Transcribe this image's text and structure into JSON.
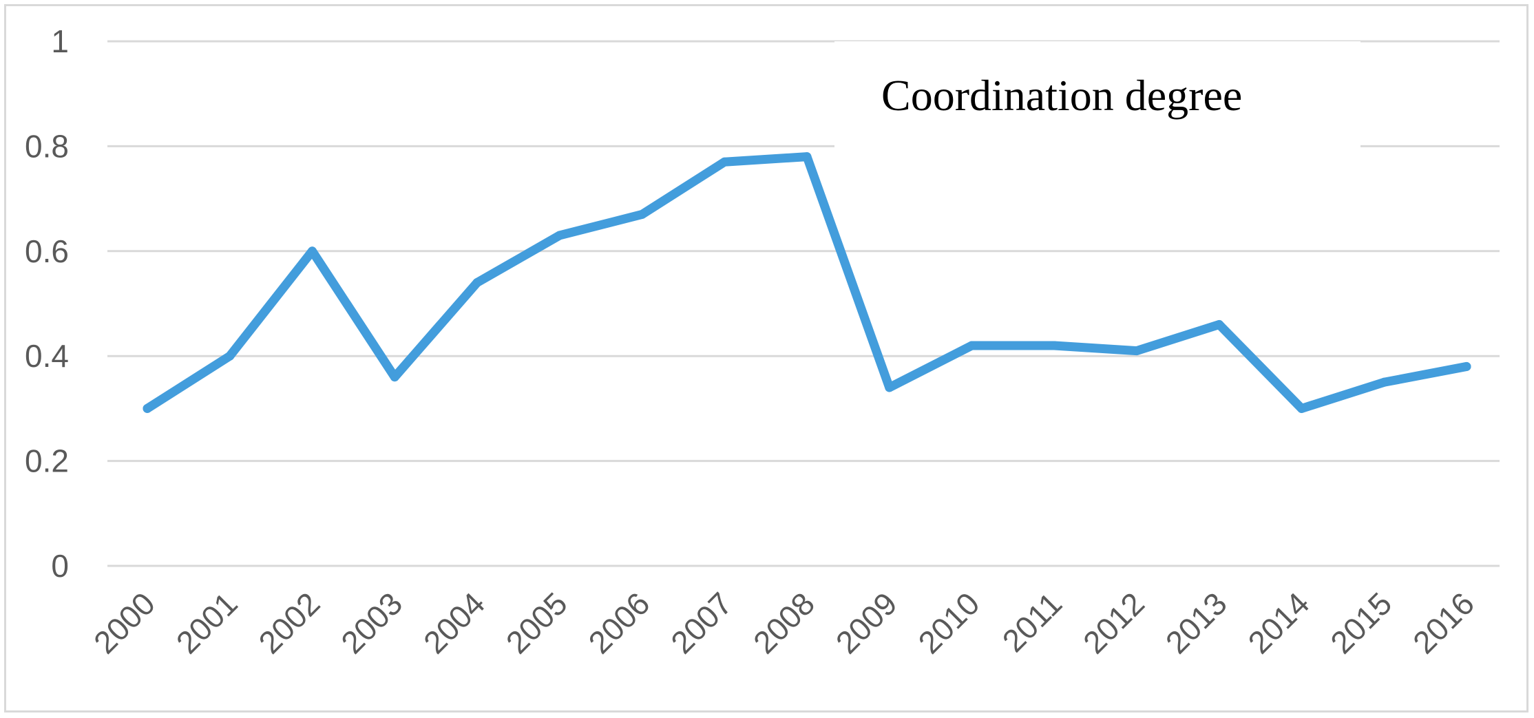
{
  "chart_data": {
    "type": "line",
    "title": "",
    "xlabel": "",
    "ylabel": "",
    "categories": [
      "2000",
      "2001",
      "2002",
      "2003",
      "2004",
      "2005",
      "2006",
      "2007",
      "2008",
      "2009",
      "2010",
      "2011",
      "2012",
      "2013",
      "2014",
      "2015",
      "2016"
    ],
    "series": [
      {
        "name": "Coordination degree",
        "color": "#439DDC",
        "values": [
          0.3,
          0.4,
          0.6,
          0.36,
          0.54,
          0.63,
          0.67,
          0.77,
          0.78,
          0.34,
          0.42,
          0.42,
          0.41,
          0.46,
          0.3,
          0.35,
          0.38
        ]
      }
    ],
    "ylim": [
      0,
      1
    ],
    "yticks": [
      "0",
      "0.2",
      "0.4",
      "0.6",
      "0.8",
      "1"
    ],
    "ytick_values": [
      0,
      0.2,
      0.4,
      0.6,
      0.8,
      1
    ],
    "grid": true,
    "legend": {
      "placement": "top-right",
      "label": "Coordination degree"
    }
  }
}
